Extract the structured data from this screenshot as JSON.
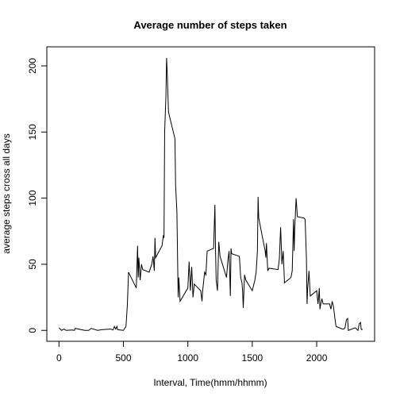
{
  "chart_data": {
    "type": "line",
    "title": "Average number of steps taken",
    "x_label": "Interval, Time(hmm/hhmm)",
    "y_label": "average steps cross all days",
    "color": "#000000",
    "x": [
      0,
      20,
      40,
      55,
      100,
      120,
      125,
      200,
      230,
      250,
      300,
      330,
      400,
      420,
      430,
      440,
      450,
      455,
      500,
      520,
      530,
      540,
      600,
      610,
      615,
      620,
      630,
      640,
      650,
      700,
      720,
      730,
      740,
      745,
      750,
      800,
      810,
      815,
      820,
      830,
      835,
      840,
      845,
      850,
      900,
      905,
      910,
      915,
      925,
      930,
      940,
      1000,
      1010,
      1020,
      1030,
      1040,
      1050,
      1100,
      1110,
      1115,
      1130,
      1140,
      1150,
      1200,
      1210,
      1215,
      1220,
      1230,
      1240,
      1250,
      1300,
      1310,
      1320,
      1330,
      1335,
      1340,
      1400,
      1410,
      1420,
      1425,
      1430,
      1440,
      1450,
      1500,
      1520,
      1530,
      1540,
      1545,
      1550,
      1600,
      1605,
      1610,
      1620,
      1630,
      1700,
      1710,
      1720,
      1730,
      1740,
      1750,
      1800,
      1810,
      1820,
      1825,
      1830,
      1840,
      1850,
      1900,
      1910,
      1920,
      1925,
      1930,
      1940,
      1950,
      2000,
      2010,
      2020,
      2025,
      2030,
      2040,
      2050,
      2100,
      2110,
      2120,
      2130,
      2140,
      2150,
      2200,
      2210,
      2220,
      2230,
      2240,
      2245,
      2300,
      2310,
      2320,
      2330,
      2340,
      2345,
      2350,
      2355
    ],
    "values": [
      2,
      0,
      1,
      0,
      0.3,
      0,
      1.5,
      0,
      0,
      1.5,
      0,
      0.5,
      1,
      0.3,
      3,
      1,
      3,
      0.5,
      0,
      3,
      18,
      44,
      32,
      64,
      40,
      55,
      38,
      50,
      46,
      44,
      50,
      56,
      45,
      70,
      55,
      64,
      72,
      70,
      150,
      177,
      206,
      195,
      180,
      165,
      145,
      110,
      100,
      90,
      25,
      40,
      22,
      32,
      52,
      30,
      48,
      25,
      35,
      30,
      22,
      30,
      44,
      42,
      60,
      62,
      95,
      60,
      38,
      30,
      67,
      56,
      40,
      52,
      60,
      26,
      62,
      58,
      56,
      40,
      36,
      30,
      17,
      42,
      38,
      30,
      38,
      44,
      60,
      101,
      85,
      60,
      55,
      66,
      45,
      47,
      46,
      54,
      78,
      50,
      60,
      36,
      40,
      45,
      84,
      60,
      78,
      100,
      86,
      85,
      84,
      55,
      20,
      32,
      45,
      26,
      30,
      20,
      32,
      16,
      19,
      24,
      20,
      20,
      16,
      22,
      18,
      10,
      3,
      1,
      1,
      2,
      8,
      9,
      0,
      2,
      1,
      0,
      5,
      6,
      1,
      0.5,
      1
    ],
    "xlim": [
      -94.2,
      2449.2
    ],
    "xticks": [
      0,
      500,
      1000,
      1500,
      2000
    ],
    "ylim": [
      -8.25,
      214.42
    ],
    "yticks": [
      0,
      50,
      100,
      150,
      200
    ]
  }
}
